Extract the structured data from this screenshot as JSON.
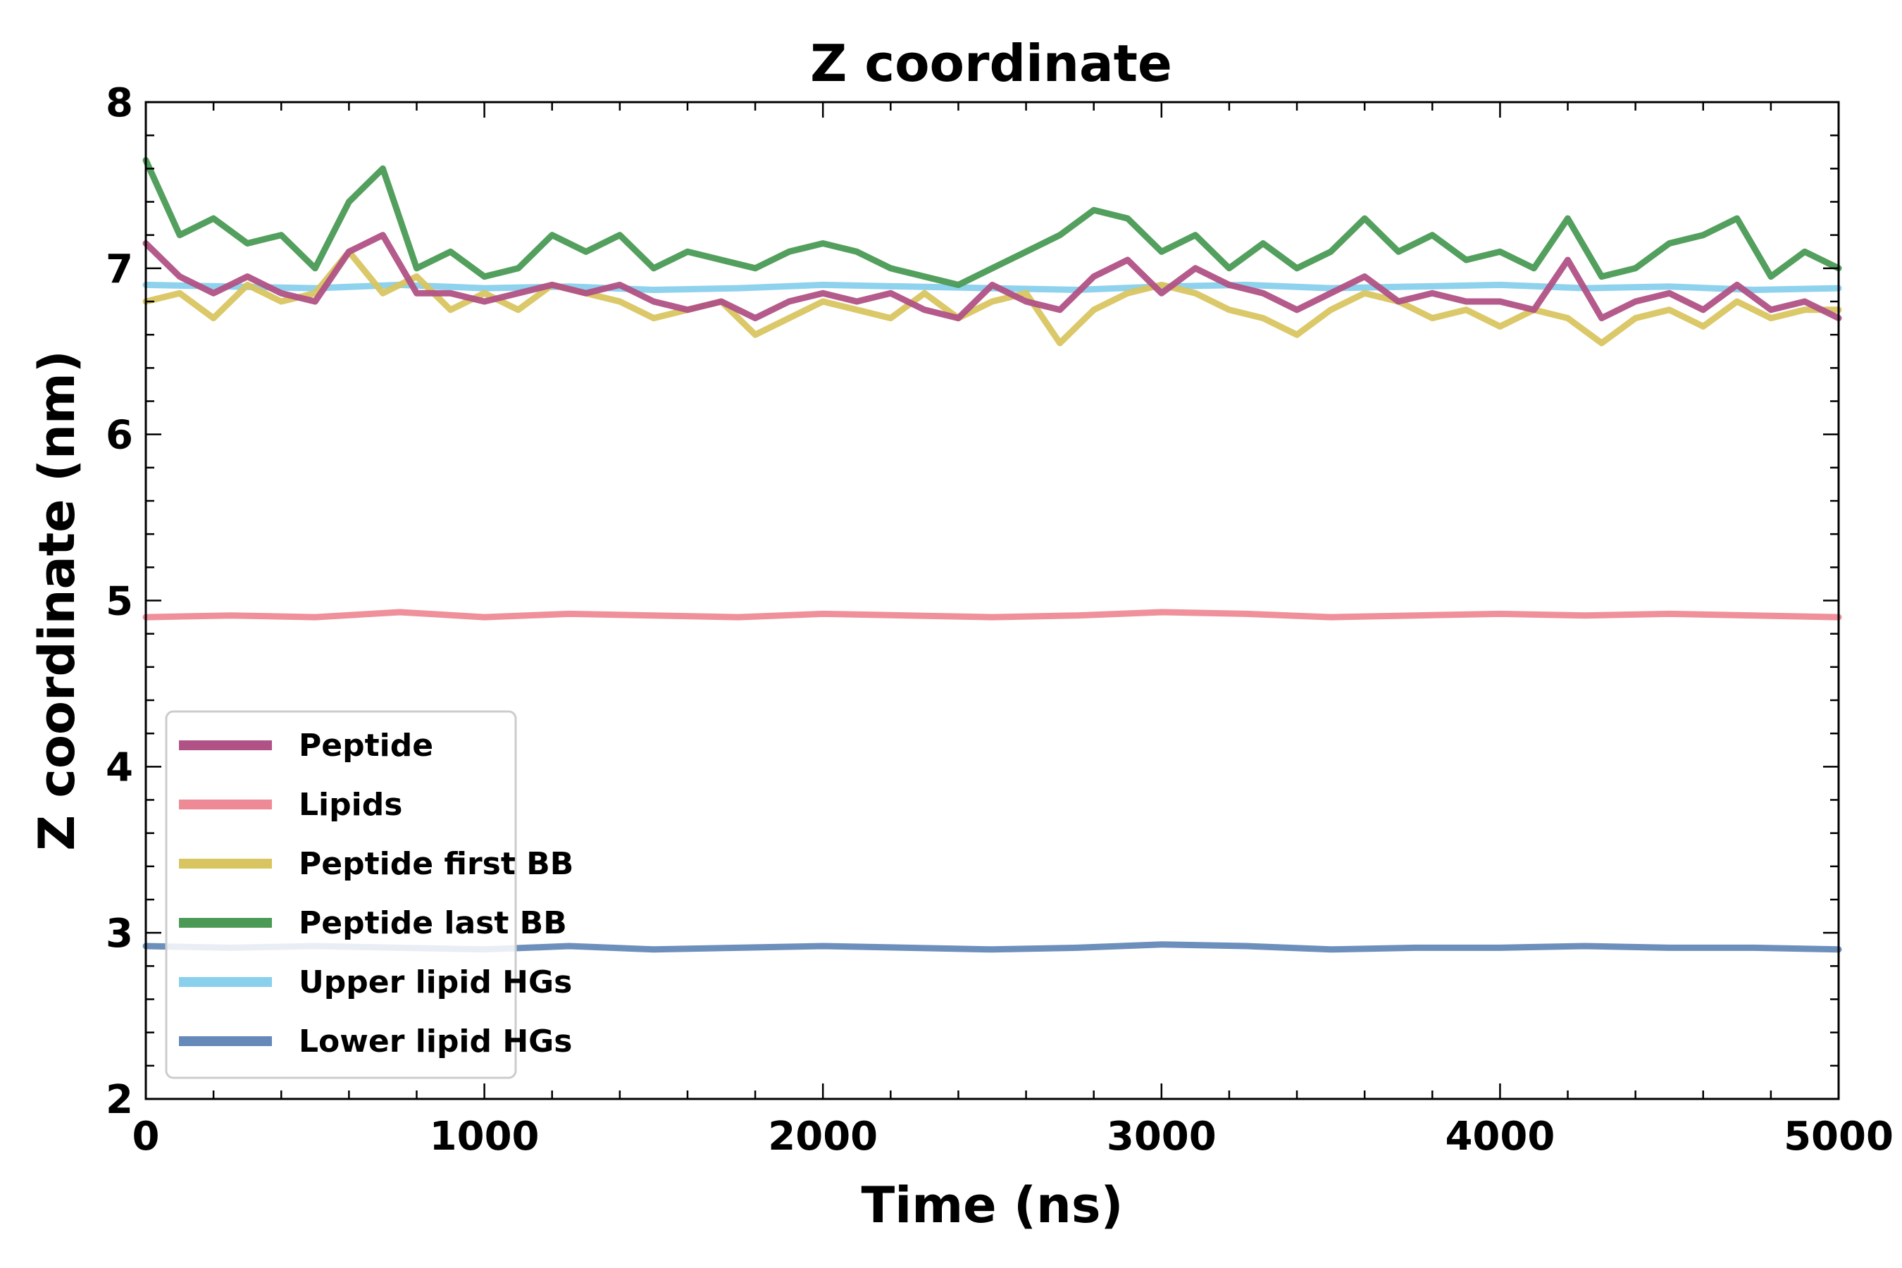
{
  "chart_data": {
    "type": "line",
    "title": "Z coordinate",
    "xlabel": "Time (ns)",
    "ylabel": "Z coordinate (nm)",
    "xlim": [
      0,
      5000
    ],
    "ylim": [
      2,
      8
    ],
    "xticks": [
      "0",
      "1000",
      "2000",
      "3000",
      "4000",
      "5000"
    ],
    "yticks": [
      "2",
      "3",
      "4",
      "5",
      "6",
      "7",
      "8"
    ],
    "grid": false,
    "legend_position": "lower-left",
    "series": [
      {
        "name": "Upper lipid HGs",
        "color": "#88d0ec",
        "x": [
          0,
          250,
          500,
          750,
          1000,
          1250,
          1500,
          1750,
          2000,
          2250,
          2500,
          2750,
          3000,
          3250,
          3500,
          3750,
          4000,
          4250,
          4500,
          4750,
          5000
        ],
        "values": [
          6.9,
          6.89,
          6.88,
          6.9,
          6.88,
          6.89,
          6.87,
          6.88,
          6.9,
          6.89,
          6.88,
          6.87,
          6.89,
          6.9,
          6.88,
          6.89,
          6.9,
          6.88,
          6.89,
          6.87,
          6.88
        ]
      },
      {
        "name": "Peptide first BB",
        "color": "#d9c560",
        "x": [
          0,
          100,
          200,
          300,
          400,
          500,
          600,
          700,
          800,
          900,
          1000,
          1100,
          1200,
          1300,
          1400,
          1500,
          1600,
          1700,
          1800,
          1900,
          2000,
          2100,
          2200,
          2300,
          2400,
          2500,
          2600,
          2700,
          2800,
          2900,
          3000,
          3100,
          3200,
          3300,
          3400,
          3500,
          3600,
          3700,
          3800,
          3900,
          4000,
          4100,
          4200,
          4300,
          4400,
          4500,
          4600,
          4700,
          4800,
          4900,
          5000
        ],
        "values": [
          6.8,
          6.85,
          6.7,
          6.9,
          6.8,
          6.85,
          7.1,
          6.85,
          6.95,
          6.75,
          6.85,
          6.75,
          6.9,
          6.85,
          6.8,
          6.7,
          6.75,
          6.8,
          6.6,
          6.7,
          6.8,
          6.75,
          6.7,
          6.85,
          6.7,
          6.8,
          6.85,
          6.55,
          6.75,
          6.85,
          6.9,
          6.85,
          6.75,
          6.7,
          6.6,
          6.75,
          6.85,
          6.8,
          6.7,
          6.75,
          6.65,
          6.75,
          6.7,
          6.55,
          6.7,
          6.75,
          6.65,
          6.8,
          6.7,
          6.75,
          6.75
        ]
      },
      {
        "name": "Peptide last BB",
        "color": "#4a9a55",
        "x": [
          0,
          100,
          200,
          300,
          400,
          500,
          600,
          700,
          800,
          900,
          1000,
          1100,
          1200,
          1300,
          1400,
          1500,
          1600,
          1700,
          1800,
          1900,
          2000,
          2100,
          2200,
          2300,
          2400,
          2500,
          2600,
          2700,
          2800,
          2900,
          3000,
          3100,
          3200,
          3300,
          3400,
          3500,
          3600,
          3700,
          3800,
          3900,
          4000,
          4100,
          4200,
          4300,
          4400,
          4500,
          4600,
          4700,
          4800,
          4900,
          5000
        ],
        "values": [
          7.65,
          7.2,
          7.3,
          7.15,
          7.2,
          7.0,
          7.4,
          7.6,
          7.0,
          7.1,
          6.95,
          7.0,
          7.2,
          7.1,
          7.2,
          7.0,
          7.1,
          7.05,
          7.0,
          7.1,
          7.15,
          7.1,
          7.0,
          6.95,
          6.9,
          7.0,
          7.1,
          7.2,
          7.35,
          7.3,
          7.1,
          7.2,
          7.0,
          7.15,
          7.0,
          7.1,
          7.3,
          7.1,
          7.2,
          7.05,
          7.1,
          7.0,
          7.3,
          6.95,
          7.0,
          7.15,
          7.2,
          7.3,
          6.95,
          7.1,
          7.0
        ]
      },
      {
        "name": "Peptide",
        "color": "#b05285",
        "x": [
          0,
          100,
          200,
          300,
          400,
          500,
          600,
          700,
          800,
          900,
          1000,
          1100,
          1200,
          1300,
          1400,
          1500,
          1600,
          1700,
          1800,
          1900,
          2000,
          2100,
          2200,
          2300,
          2400,
          2500,
          2600,
          2700,
          2800,
          2900,
          3000,
          3100,
          3200,
          3300,
          3400,
          3500,
          3600,
          3700,
          3800,
          3900,
          4000,
          4100,
          4200,
          4300,
          4400,
          4500,
          4600,
          4700,
          4800,
          4900,
          5000
        ],
        "values": [
          7.15,
          6.95,
          6.85,
          6.95,
          6.85,
          6.8,
          7.1,
          7.2,
          6.85,
          6.85,
          6.8,
          6.85,
          6.9,
          6.85,
          6.9,
          6.8,
          6.75,
          6.8,
          6.7,
          6.8,
          6.85,
          6.8,
          6.85,
          6.75,
          6.7,
          6.9,
          6.8,
          6.75,
          6.95,
          7.05,
          6.85,
          7.0,
          6.9,
          6.85,
          6.75,
          6.85,
          6.95,
          6.8,
          6.85,
          6.8,
          6.8,
          6.75,
          7.05,
          6.7,
          6.8,
          6.85,
          6.75,
          6.9,
          6.75,
          6.8,
          6.7
        ]
      },
      {
        "name": "Lipids",
        "color": "#ee8a96",
        "x": [
          0,
          250,
          500,
          750,
          1000,
          1250,
          1500,
          1750,
          2000,
          2250,
          2500,
          2750,
          3000,
          3250,
          3500,
          3750,
          4000,
          4250,
          4500,
          4750,
          5000
        ],
        "values": [
          4.9,
          4.91,
          4.9,
          4.93,
          4.9,
          4.92,
          4.91,
          4.9,
          4.92,
          4.91,
          4.9,
          4.91,
          4.93,
          4.92,
          4.9,
          4.91,
          4.92,
          4.91,
          4.92,
          4.91,
          4.9
        ]
      },
      {
        "name": "Lower lipid HGs",
        "color": "#6589b8",
        "x": [
          0,
          250,
          500,
          750,
          1000,
          1250,
          1500,
          1750,
          2000,
          2250,
          2500,
          2750,
          3000,
          3250,
          3500,
          3750,
          4000,
          4250,
          4500,
          4750,
          5000
        ],
        "values": [
          2.92,
          2.91,
          2.92,
          2.91,
          2.9,
          2.92,
          2.9,
          2.91,
          2.92,
          2.91,
          2.9,
          2.91,
          2.93,
          2.92,
          2.9,
          2.91,
          2.91,
          2.92,
          2.91,
          2.91,
          2.9
        ]
      }
    ],
    "legend_order": [
      "Peptide",
      "Lipids",
      "Peptide first BB",
      "Peptide last BB",
      "Upper lipid HGs",
      "Lower lipid HGs"
    ]
  }
}
